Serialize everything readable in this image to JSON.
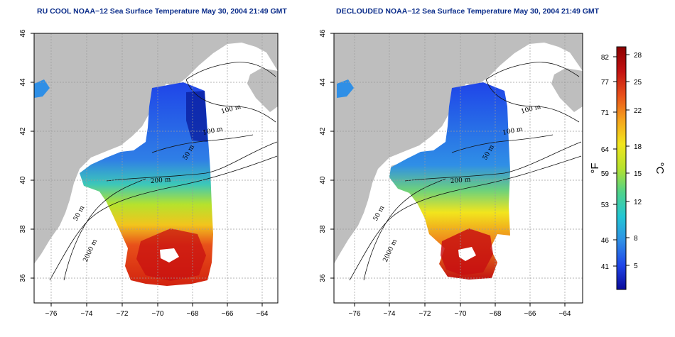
{
  "panels": [
    {
      "title": "RU COOL NOAA−12 Sea Surface Temperature May 30, 2004 21:49 GMT",
      "contour_labels": [
        "100 m",
        "100 m",
        "50 m",
        "200 m",
        "50 m",
        "2000 m"
      ]
    },
    {
      "title": "DECLOUDED NOAA−12 Sea Surface Temperature May 30, 2004 21:49 GMT",
      "contour_labels": [
        "100 m",
        "100 m",
        "50 m",
        "200 m",
        "50 m",
        "2000 m"
      ]
    }
  ],
  "axes": {
    "x_ticks": [
      "−76",
      "−74",
      "−72",
      "−70",
      "−68",
      "−66",
      "−64"
    ],
    "y_ticks": [
      "46",
      "44",
      "42",
      "40",
      "38",
      "36"
    ]
  },
  "colorbar": {
    "fahrenheit_label": "°F",
    "celsius_label": "°C",
    "fahrenheit_ticks": [
      "82",
      "77",
      "71",
      "64",
      "59",
      "53",
      "46",
      "41"
    ],
    "celsius_ticks": [
      "28",
      "25",
      "22",
      "18",
      "15",
      "12",
      "8",
      "5"
    ],
    "colors": [
      "#0a0a9a",
      "#1f45e8",
      "#2f8fe6",
      "#22c6d4",
      "#4fd28a",
      "#b6e22d",
      "#f2e51d",
      "#f5a21c",
      "#e8501a",
      "#c21212",
      "#8c0000"
    ]
  },
  "colors": {
    "land": "#bebebe",
    "title": "#0b2d8a",
    "grid": "#9a9a9a"
  }
}
